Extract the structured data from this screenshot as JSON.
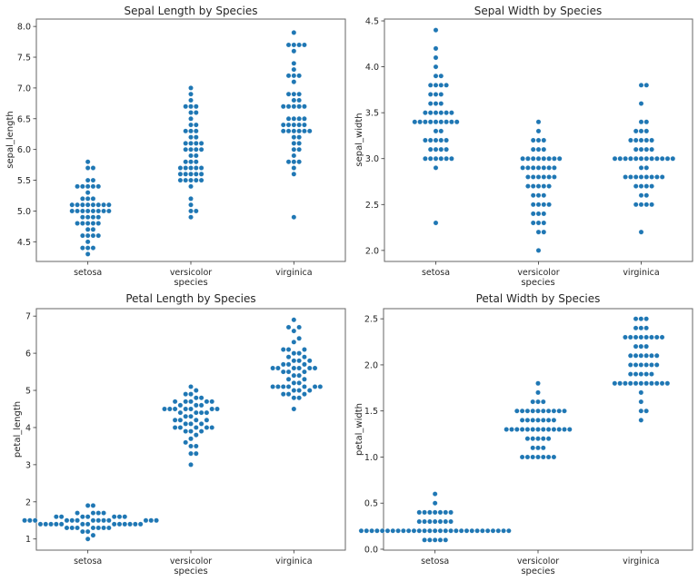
{
  "colors": {
    "marker": "#1f77b4",
    "axes": "#666666",
    "text": "#262626",
    "background": "#ffffff"
  },
  "chart_data": [
    {
      "type": "scatter",
      "subtype": "swarm",
      "title": "Sepal Length by Species",
      "xlabel": "species",
      "ylabel": "sepal_length",
      "categories": [
        "setosa",
        "versicolor",
        "virginica"
      ],
      "yticks": [
        "4.5",
        "5.0",
        "5.5",
        "6.0",
        "6.5",
        "7.0",
        "7.5",
        "8.0"
      ],
      "ylim": [
        4.18,
        8.12
      ],
      "grid": false,
      "series": [
        {
          "name": "setosa",
          "values": [
            5.1,
            4.9,
            4.7,
            4.6,
            5.0,
            5.4,
            4.6,
            5.0,
            4.4,
            4.9,
            5.4,
            4.8,
            4.8,
            4.3,
            5.8,
            5.7,
            5.4,
            5.1,
            5.7,
            5.1,
            5.4,
            5.1,
            4.6,
            5.1,
            4.8,
            5.0,
            5.0,
            5.2,
            5.2,
            4.7,
            4.8,
            5.4,
            5.2,
            5.5,
            4.9,
            5.0,
            5.5,
            4.9,
            4.4,
            5.1,
            5.0,
            4.5,
            4.4,
            5.0,
            5.1,
            4.8,
            5.1,
            4.6,
            5.3,
            5.0
          ]
        },
        {
          "name": "versicolor",
          "values": [
            7.0,
            6.4,
            6.9,
            5.5,
            6.5,
            5.7,
            6.3,
            4.9,
            6.6,
            5.2,
            5.0,
            5.9,
            6.0,
            6.1,
            5.6,
            6.7,
            5.6,
            5.8,
            6.2,
            5.6,
            5.9,
            6.1,
            6.3,
            6.1,
            6.4,
            6.6,
            6.8,
            6.7,
            6.0,
            5.7,
            5.5,
            5.5,
            5.8,
            6.0,
            5.4,
            6.0,
            6.7,
            6.3,
            5.6,
            5.5,
            5.5,
            6.1,
            5.8,
            5.0,
            5.6,
            5.7,
            5.7,
            6.2,
            5.1,
            5.7
          ]
        },
        {
          "name": "virginica",
          "values": [
            6.3,
            5.8,
            7.1,
            6.3,
            6.5,
            7.6,
            4.9,
            7.3,
            6.7,
            7.2,
            6.5,
            6.4,
            6.8,
            5.7,
            5.8,
            6.4,
            6.5,
            7.7,
            7.7,
            6.0,
            6.9,
            5.6,
            7.7,
            6.3,
            6.7,
            7.2,
            6.2,
            6.1,
            6.4,
            7.2,
            7.4,
            7.9,
            6.4,
            6.3,
            6.1,
            7.7,
            6.3,
            6.4,
            6.0,
            6.9,
            6.7,
            6.9,
            5.8,
            6.8,
            6.7,
            6.7,
            6.3,
            6.5,
            6.2,
            5.9
          ]
        }
      ]
    },
    {
      "type": "scatter",
      "subtype": "swarm",
      "title": "Sepal Width by Species",
      "xlabel": "species",
      "ylabel": "sepal_width",
      "categories": [
        "setosa",
        "versicolor",
        "virginica"
      ],
      "yticks": [
        "2.0",
        "2.5",
        "3.0",
        "3.5",
        "4.0",
        "4.5"
      ],
      "ylim": [
        1.88,
        4.52
      ],
      "grid": false,
      "series": [
        {
          "name": "setosa",
          "values": [
            3.5,
            3.0,
            3.2,
            3.1,
            3.6,
            3.9,
            3.4,
            3.4,
            2.9,
            3.1,
            3.7,
            3.4,
            3.0,
            3.0,
            4.0,
            4.4,
            3.9,
            3.5,
            3.8,
            3.8,
            3.4,
            3.7,
            3.6,
            3.3,
            3.4,
            3.0,
            3.4,
            3.5,
            3.4,
            3.2,
            3.1,
            3.4,
            4.1,
            4.2,
            3.1,
            3.2,
            3.5,
            3.6,
            3.0,
            3.4,
            3.5,
            2.3,
            3.2,
            3.5,
            3.8,
            3.0,
            3.8,
            3.2,
            3.7,
            3.3
          ]
        },
        {
          "name": "versicolor",
          "values": [
            3.2,
            3.2,
            3.1,
            2.3,
            2.8,
            2.8,
            3.3,
            2.4,
            2.9,
            2.7,
            2.0,
            3.0,
            2.2,
            2.9,
            2.9,
            3.1,
            3.0,
            2.7,
            2.2,
            2.5,
            3.2,
            2.8,
            2.5,
            2.8,
            2.9,
            3.0,
            2.8,
            3.0,
            2.9,
            2.6,
            2.4,
            2.4,
            2.7,
            2.7,
            3.0,
            3.4,
            3.1,
            2.3,
            3.0,
            2.5,
            2.6,
            3.0,
            2.6,
            2.3,
            2.7,
            3.0,
            2.9,
            2.9,
            2.5,
            2.8
          ]
        },
        {
          "name": "virginica",
          "values": [
            3.3,
            2.7,
            3.0,
            2.9,
            3.0,
            3.0,
            2.5,
            2.9,
            2.5,
            3.6,
            3.2,
            2.7,
            3.0,
            2.5,
            2.8,
            3.2,
            3.0,
            3.8,
            2.6,
            2.2,
            3.2,
            2.8,
            2.8,
            2.7,
            3.3,
            3.2,
            2.8,
            3.0,
            2.8,
            3.0,
            2.8,
            3.8,
            2.8,
            2.8,
            2.6,
            3.0,
            3.4,
            3.1,
            3.0,
            3.1,
            3.1,
            3.1,
            2.7,
            3.2,
            3.3,
            3.0,
            2.5,
            3.0,
            3.4,
            3.0
          ]
        }
      ]
    },
    {
      "type": "scatter",
      "subtype": "swarm",
      "title": "Petal Length by Species",
      "xlabel": "species",
      "ylabel": "petal_length",
      "categories": [
        "setosa",
        "versicolor",
        "virginica"
      ],
      "yticks": [
        "1",
        "2",
        "3",
        "4",
        "5",
        "6",
        "7"
      ],
      "ylim": [
        0.7,
        7.2
      ],
      "grid": false,
      "series": [
        {
          "name": "setosa",
          "values": [
            1.4,
            1.4,
            1.3,
            1.5,
            1.4,
            1.7,
            1.4,
            1.5,
            1.4,
            1.5,
            1.5,
            1.6,
            1.4,
            1.1,
            1.2,
            1.5,
            1.3,
            1.4,
            1.7,
            1.5,
            1.7,
            1.5,
            1.0,
            1.7,
            1.9,
            1.6,
            1.6,
            1.5,
            1.4,
            1.6,
            1.6,
            1.5,
            1.5,
            1.4,
            1.5,
            1.2,
            1.3,
            1.4,
            1.3,
            1.5,
            1.3,
            1.3,
            1.3,
            1.6,
            1.9,
            1.4,
            1.6,
            1.4,
            1.5,
            1.4
          ]
        },
        {
          "name": "versicolor",
          "values": [
            4.7,
            4.5,
            4.9,
            4.0,
            4.6,
            4.5,
            4.7,
            3.3,
            4.6,
            3.9,
            3.5,
            4.2,
            4.0,
            4.7,
            3.6,
            4.4,
            4.5,
            4.1,
            4.5,
            3.9,
            4.8,
            4.0,
            4.9,
            4.7,
            4.3,
            4.4,
            4.8,
            5.0,
            4.5,
            3.5,
            3.8,
            3.7,
            3.9,
            5.1,
            4.5,
            4.5,
            4.7,
            4.4,
            4.1,
            4.0,
            4.4,
            4.6,
            4.0,
            3.3,
            4.2,
            4.2,
            4.2,
            4.3,
            3.0,
            4.1
          ]
        },
        {
          "name": "virginica",
          "values": [
            6.0,
            5.1,
            5.9,
            5.6,
            5.8,
            6.6,
            4.5,
            6.3,
            5.8,
            6.1,
            5.1,
            5.3,
            5.5,
            5.0,
            5.1,
            5.3,
            5.5,
            6.7,
            6.9,
            5.0,
            5.7,
            4.9,
            6.7,
            4.9,
            5.7,
            6.0,
            4.8,
            4.9,
            5.6,
            5.8,
            6.1,
            6.4,
            5.6,
            5.1,
            5.6,
            6.1,
            5.6,
            5.5,
            4.8,
            5.4,
            5.6,
            5.1,
            5.1,
            5.9,
            5.7,
            5.2,
            5.0,
            5.2,
            5.4,
            5.1
          ]
        }
      ]
    },
    {
      "type": "scatter",
      "subtype": "swarm",
      "title": "Petal Width by Species",
      "xlabel": "species",
      "ylabel": "petal_width",
      "categories": [
        "setosa",
        "versicolor",
        "virginica"
      ],
      "yticks": [
        "0.0",
        "0.5",
        "1.0",
        "1.5",
        "2.0",
        "2.5"
      ],
      "ylim": [
        -0.01,
        2.61
      ],
      "grid": false,
      "series": [
        {
          "name": "setosa",
          "values": [
            0.2,
            0.2,
            0.2,
            0.2,
            0.2,
            0.4,
            0.3,
            0.2,
            0.2,
            0.1,
            0.2,
            0.2,
            0.1,
            0.1,
            0.2,
            0.4,
            0.4,
            0.3,
            0.3,
            0.3,
            0.2,
            0.4,
            0.2,
            0.5,
            0.2,
            0.2,
            0.4,
            0.2,
            0.2,
            0.2,
            0.2,
            0.4,
            0.1,
            0.2,
            0.2,
            0.2,
            0.2,
            0.1,
            0.2,
            0.2,
            0.3,
            0.3,
            0.2,
            0.6,
            0.4,
            0.3,
            0.2,
            0.2,
            0.2,
            0.2
          ]
        },
        {
          "name": "versicolor",
          "values": [
            1.4,
            1.5,
            1.5,
            1.3,
            1.5,
            1.3,
            1.6,
            1.0,
            1.3,
            1.4,
            1.0,
            1.5,
            1.0,
            1.4,
            1.3,
            1.4,
            1.5,
            1.0,
            1.5,
            1.1,
            1.8,
            1.3,
            1.5,
            1.2,
            1.3,
            1.4,
            1.4,
            1.7,
            1.5,
            1.0,
            1.1,
            1.0,
            1.2,
            1.6,
            1.5,
            1.6,
            1.5,
            1.3,
            1.3,
            1.3,
            1.2,
            1.4,
            1.2,
            1.0,
            1.3,
            1.2,
            1.3,
            1.3,
            1.1,
            1.3
          ]
        },
        {
          "name": "virginica",
          "values": [
            2.5,
            1.9,
            2.1,
            1.8,
            2.2,
            2.1,
            1.7,
            1.8,
            1.8,
            2.5,
            2.0,
            1.9,
            2.1,
            2.0,
            2.4,
            2.3,
            1.8,
            2.2,
            2.3,
            1.5,
            2.3,
            2.0,
            2.0,
            1.8,
            2.1,
            1.8,
            1.8,
            1.8,
            2.1,
            1.6,
            1.9,
            2.0,
            2.2,
            1.5,
            1.4,
            2.3,
            2.4,
            1.8,
            1.8,
            2.1,
            2.4,
            2.3,
            1.9,
            2.3,
            2.5,
            2.3,
            1.9,
            2.0,
            2.3,
            1.8
          ]
        }
      ]
    }
  ]
}
